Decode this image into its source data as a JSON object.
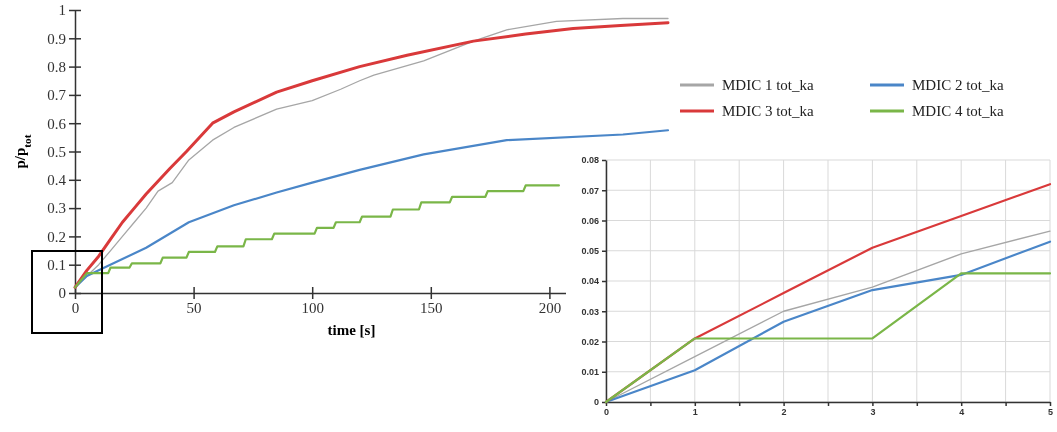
{
  "chart_data": [
    {
      "type": "line",
      "xlabel": "time [s]",
      "ylabel": "p/p$_{tot}$",
      "xlim": [
        0,
        250
      ],
      "xticks": [
        0,
        50,
        100,
        150,
        200
      ],
      "ylim": [
        0,
        1
      ],
      "yticks": [
        0,
        0.1,
        0.2,
        0.3,
        0.4,
        0.5,
        0.6,
        0.7,
        0.8,
        0.9,
        1
      ],
      "grid": false,
      "legend": "right",
      "line_style": "solid",
      "marker": "none",
      "series": [
        {
          "name": "MDIC 1 tot_ka",
          "color": "#a6a6a6",
          "x": [
            0,
            5,
            10,
            15,
            20,
            25,
            30,
            35,
            41,
            48,
            58,
            67,
            85,
            100,
            112,
            120,
            126,
            147,
            168,
            182,
            203,
            231,
            250
          ],
          "values": [
            0.02,
            0.06,
            0.1,
            0.15,
            0.2,
            0.25,
            0.3,
            0.36,
            0.39,
            0.47,
            0.54,
            0.585,
            0.65,
            0.68,
            0.72,
            0.75,
            0.77,
            0.82,
            0.89,
            0.93,
            0.96,
            0.97,
            0.97
          ]
        },
        {
          "name": "MDIC 2 tot_ka",
          "color": "#4a86c8",
          "x": [
            0,
            5,
            10,
            20,
            30,
            48,
            67,
            85,
            100,
            120,
            147,
            182,
            231,
            250
          ],
          "values": [
            0.02,
            0.06,
            0.08,
            0.12,
            0.16,
            0.25,
            0.31,
            0.355,
            0.39,
            0.435,
            0.49,
            0.54,
            0.56,
            0.575
          ]
        },
        {
          "name": "MDIC 3 tot_ka",
          "color": "#d9393a",
          "x": [
            0,
            5,
            10,
            15,
            20,
            25,
            30,
            40,
            47,
            58,
            67,
            85,
            100,
            120,
            140,
            168,
            190,
            210,
            230,
            250
          ],
          "values": [
            0.02,
            0.08,
            0.13,
            0.19,
            0.25,
            0.3,
            0.35,
            0.44,
            0.5,
            0.6,
            0.64,
            0.71,
            0.75,
            0.8,
            0.84,
            0.89,
            0.915,
            0.935,
            0.945,
            0.955
          ]
        },
        {
          "name": "MDIC 4 tot_ka",
          "color": "#7ab648",
          "x": [
            0,
            5,
            14,
            15,
            23,
            24,
            36,
            37,
            47,
            48,
            59,
            60,
            71,
            72,
            83,
            84,
            101,
            102,
            109,
            110,
            120,
            121,
            133,
            134,
            145,
            146,
            158,
            159,
            173,
            174,
            189,
            190,
            204
          ],
          "values": [
            0.02,
            0.07,
            0.07,
            0.09,
            0.09,
            0.105,
            0.105,
            0.125,
            0.125,
            0.145,
            0.145,
            0.165,
            0.165,
            0.19,
            0.19,
            0.21,
            0.21,
            0.23,
            0.23,
            0.25,
            0.25,
            0.27,
            0.27,
            0.295,
            0.295,
            0.32,
            0.32,
            0.34,
            0.34,
            0.36,
            0.36,
            0.38,
            0.38
          ]
        }
      ]
    },
    {
      "type": "line",
      "xlim": [
        0,
        5
      ],
      "xticks": [
        0,
        {
          "value": 0.5,
          "label": null
        },
        1,
        {
          "value": 1.5,
          "label": null
        },
        2,
        {
          "value": 2.5,
          "label": null
        },
        3,
        {
          "value": 3.5,
          "label": null
        },
        4,
        {
          "value": 4.5,
          "label": null
        },
        5
      ],
      "ylim": [
        0,
        0.08
      ],
      "yticks": [
        0,
        0.01,
        0.02,
        0.03,
        0.04,
        0.05,
        0.06,
        0.07,
        0.08
      ],
      "grid": true,
      "line_style": "solid",
      "marker": "none",
      "x": [
        0,
        1,
        2,
        3,
        4,
        5
      ],
      "series": [
        {
          "color": "#a6a6a6",
          "values": [
            0,
            0.015,
            0.03,
            0.038,
            0.049,
            0.0565
          ]
        },
        {
          "color": "#4a86c8",
          "values": [
            0,
            0.0105,
            0.0265,
            0.037,
            0.042,
            0.053
          ]
        },
        {
          "color": "#d9393a",
          "values": [
            0,
            0.021,
            0.036,
            0.051,
            0.0615,
            0.072
          ]
        },
        {
          "color": "#7ab648",
          "values": [
            0,
            0.021,
            0.021,
            0.021,
            0.0425,
            0.0425
          ]
        }
      ]
    }
  ]
}
